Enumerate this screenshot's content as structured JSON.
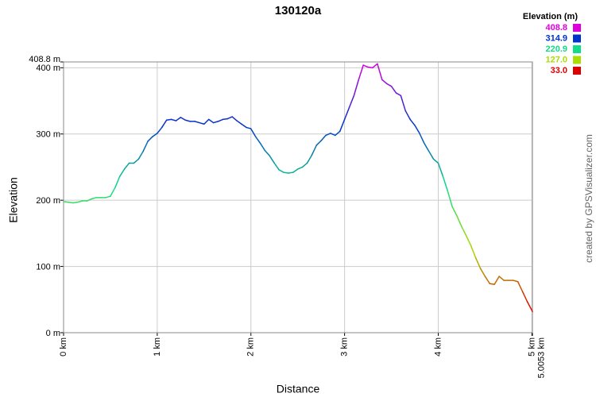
{
  "chart_data": {
    "type": "line",
    "title": "130120a",
    "x_label": "Distance",
    "y_label": "Elevation",
    "credit": "created by GPSVisualizer.com",
    "grid": true,
    "xlim": [
      0,
      5.0053
    ],
    "ylim": [
      0,
      408.8
    ],
    "xticks": [
      {
        "value": 0,
        "label": "0 km"
      },
      {
        "value": 1,
        "label": "1 km"
      },
      {
        "value": 2,
        "label": "2 km"
      },
      {
        "value": 3,
        "label": "3 km"
      },
      {
        "value": 4,
        "label": "4 km"
      },
      {
        "value": 5,
        "label": "5 km"
      },
      {
        "value": 5.0053,
        "label": "5.0053 km"
      }
    ],
    "yticks": [
      {
        "value": 0,
        "label": "0 m"
      },
      {
        "value": 100,
        "label": "100 m"
      },
      {
        "value": 200,
        "label": "200 m"
      },
      {
        "value": 300,
        "label": "300 m"
      },
      {
        "value": 400,
        "label": "400 m"
      },
      {
        "value": 408.8,
        "label": "408.8 m"
      }
    ],
    "legend": {
      "title": "Elevation (m)",
      "stops": [
        {
          "value": 408.8,
          "label": "408.8",
          "color": "#dd00dd"
        },
        {
          "value": 314.9,
          "label": "314.9",
          "color": "#0033cc"
        },
        {
          "value": 220.9,
          "label": "220.9",
          "color": "#11dd88"
        },
        {
          "value": 127,
          "label": "127.0",
          "color": "#aadd00"
        },
        {
          "value": 33,
          "label": "33.0",
          "color": "#dd0000"
        }
      ]
    },
    "x": [
      0,
      0.05,
      0.1,
      0.15,
      0.2,
      0.25,
      0.3,
      0.35,
      0.4,
      0.45,
      0.5,
      0.55,
      0.6,
      0.65,
      0.7,
      0.75,
      0.8,
      0.85,
      0.9,
      0.95,
      1.0,
      1.05,
      1.1,
      1.15,
      1.2,
      1.25,
      1.3,
      1.35,
      1.4,
      1.45,
      1.5,
      1.55,
      1.6,
      1.65,
      1.7,
      1.75,
      1.8,
      1.85,
      1.9,
      1.95,
      2.0,
      2.05,
      2.1,
      2.15,
      2.2,
      2.25,
      2.3,
      2.35,
      2.4,
      2.45,
      2.5,
      2.55,
      2.6,
      2.65,
      2.7,
      2.75,
      2.8,
      2.85,
      2.9,
      2.95,
      3.0,
      3.05,
      3.1,
      3.15,
      3.2,
      3.25,
      3.3,
      3.35,
      3.4,
      3.45,
      3.5,
      3.55,
      3.6,
      3.65,
      3.7,
      3.75,
      3.8,
      3.85,
      3.9,
      3.95,
      4.0,
      4.05,
      4.1,
      4.15,
      4.2,
      4.25,
      4.3,
      4.35,
      4.4,
      4.45,
      4.5,
      4.55,
      4.6,
      4.65,
      4.7,
      4.75,
      4.8,
      4.85,
      4.9,
      4.95,
      5.0053
    ],
    "series": [
      {
        "name": "Elevation",
        "values": [
          198,
          197,
          196,
          197,
          199,
          199,
          202,
          204,
          204,
          204,
          206,
          219,
          236,
          247,
          256,
          256,
          262,
          274,
          289,
          296,
          301,
          310,
          321,
          322,
          320,
          325,
          321,
          319,
          319,
          317,
          315,
          322,
          317,
          319,
          322,
          323,
          326,
          320,
          315,
          310,
          308,
          296,
          286,
          275,
          267,
          256,
          246,
          242,
          241,
          242,
          247,
          250,
          256,
          268,
          283,
          290,
          298,
          301,
          298,
          304,
          322,
          340,
          358,
          382,
          404,
          401,
          400,
          406,
          382,
          376,
          372,
          362,
          358,
          335,
          322,
          313,
          301,
          286,
          274,
          262,
          256,
          236,
          214,
          190,
          176,
          160,
          146,
          131,
          113,
          97,
          85,
          74,
          73,
          85,
          79,
          79,
          79,
          77,
          62,
          47,
          32
        ]
      }
    ]
  }
}
